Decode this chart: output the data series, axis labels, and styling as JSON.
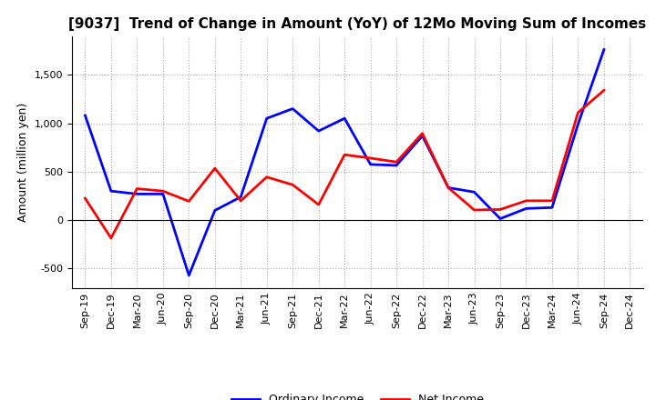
{
  "title": "[9037]  Trend of Change in Amount (YoY) of 12Mo Moving Sum of Incomes",
  "ylabel": "Amount (million yen)",
  "x_labels": [
    "Sep-19",
    "Dec-19",
    "Mar-20",
    "Jun-20",
    "Sep-20",
    "Dec-20",
    "Mar-21",
    "Jun-21",
    "Sep-21",
    "Dec-21",
    "Mar-22",
    "Jun-22",
    "Sep-22",
    "Dec-22",
    "Mar-23",
    "Jun-23",
    "Sep-23",
    "Dec-23",
    "Mar-24",
    "Jun-24",
    "Sep-24",
    "Dec-24"
  ],
  "ordinary_income": [
    1080,
    300,
    270,
    270,
    -570,
    100,
    240,
    1050,
    1150,
    920,
    1050,
    575,
    565,
    870,
    335,
    290,
    15,
    120,
    130,
    990,
    1760,
    null
  ],
  "net_income": [
    225,
    -185,
    325,
    300,
    195,
    535,
    200,
    445,
    365,
    160,
    675,
    640,
    600,
    895,
    335,
    105,
    110,
    200,
    200,
    1110,
    1340,
    null
  ],
  "ordinary_income_color": "#0000ff",
  "net_income_color": "#ff0000",
  "ylim": [
    -700,
    1900
  ],
  "yticks": [
    -500,
    0,
    500,
    1000,
    1500
  ],
  "legend_labels": [
    "Ordinary Income",
    "Net Income"
  ],
  "background_color": "#ffffff",
  "grid_color": "#b0b0b0",
  "title_fontsize": 11,
  "ylabel_fontsize": 9,
  "tick_fontsize": 8
}
